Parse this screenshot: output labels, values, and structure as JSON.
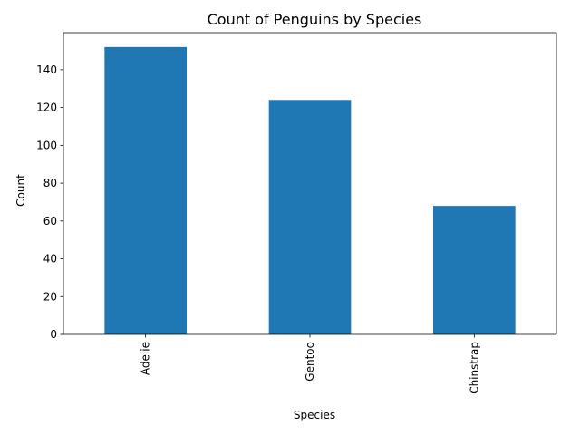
{
  "chart_data": {
    "type": "bar",
    "title": "Count of Penguins by Species",
    "xlabel": "Species",
    "ylabel": "Count",
    "categories": [
      "Adelie",
      "Gentoo",
      "Chinstrap"
    ],
    "values": [
      152,
      124,
      68
    ],
    "ylim": [
      0,
      159.6
    ],
    "yticks": [
      0,
      20,
      40,
      60,
      80,
      100,
      120,
      140
    ],
    "grid": false,
    "legend": "none",
    "bar_color": "#1f77b4",
    "axis_color": "#000000"
  }
}
